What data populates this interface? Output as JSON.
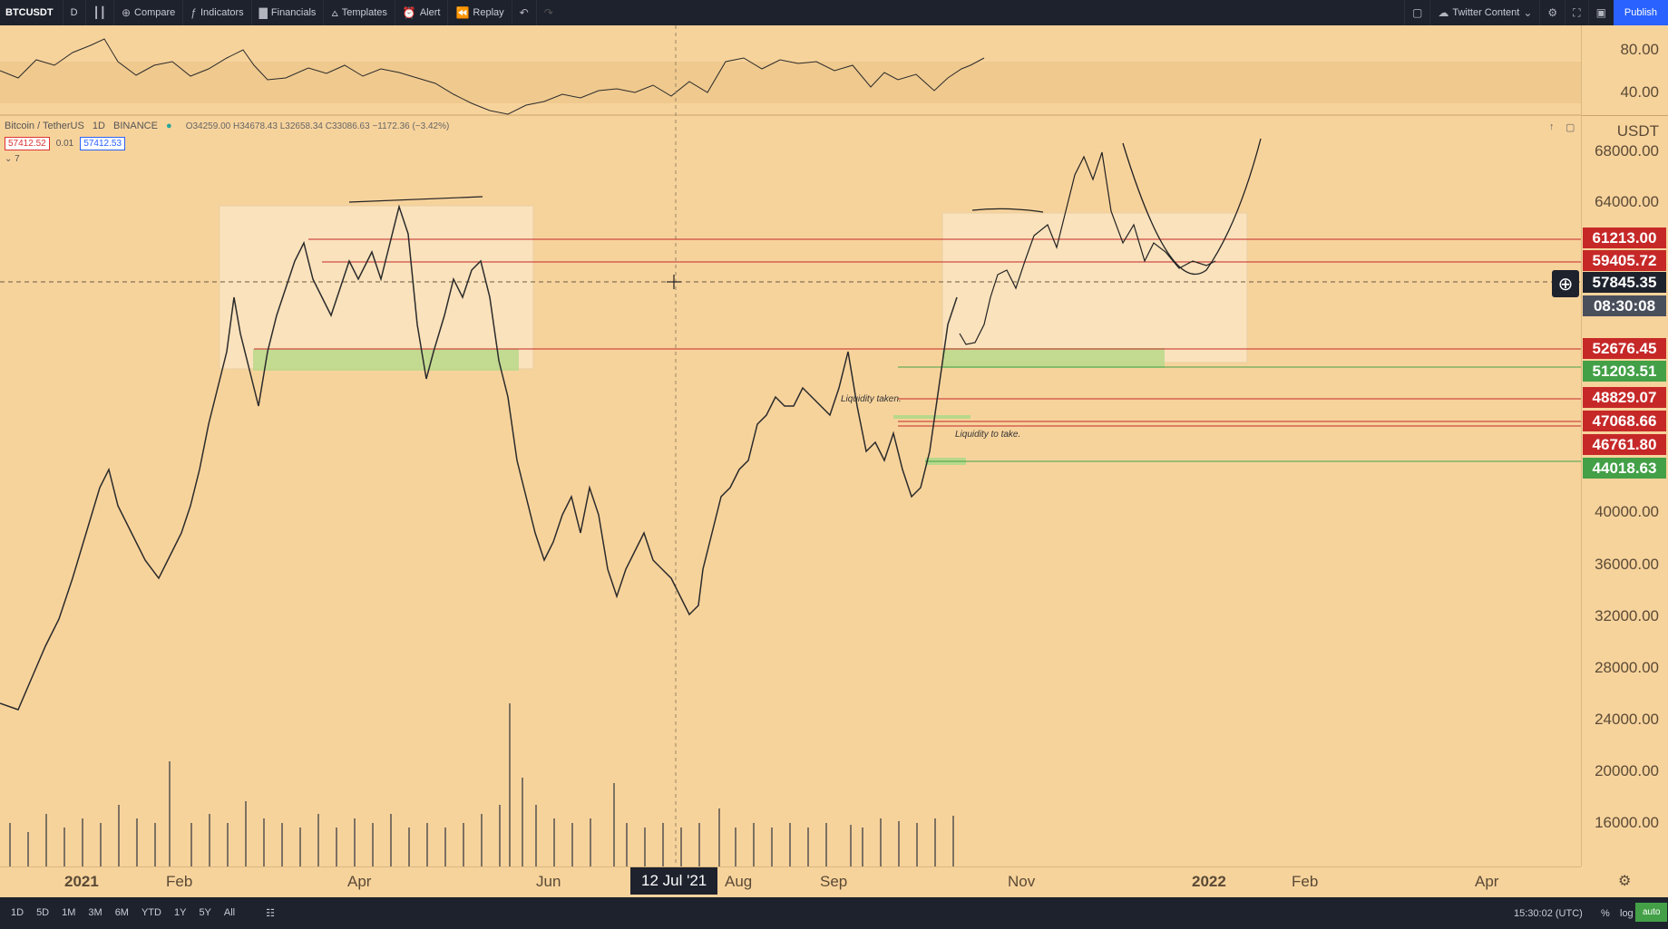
{
  "toolbar": {
    "symbol": "BTCUSDT",
    "interval": "D",
    "compare": "Compare",
    "indicators": "Indicators",
    "financials": "Financials",
    "templates": "Templates",
    "alert": "Alert",
    "replay": "Replay",
    "layout_name": "Twitter Content",
    "publish": "Publish"
  },
  "legend": {
    "title": "Bitcoin / TetherUS",
    "interval": "1D",
    "exchange": "BINANCE",
    "ohlc": "O34259.00 H34678.43 L32658.34 C33086.63 −1172.36 (−3.42%)",
    "bid": "57412.52",
    "spread": "0.01",
    "ask": "57412.53",
    "collapse": "7"
  },
  "rsi_axis": [
    "80.00",
    "40.00"
  ],
  "price_axis": {
    "currency": "USDT",
    "ticks": [
      "68000.00",
      "64000.00",
      "40000.00",
      "36000.00",
      "32000.00",
      "28000.00",
      "24000.00",
      "20000.00",
      "16000.00"
    ]
  },
  "price_tags": [
    {
      "value": "61213.00",
      "kind": "red"
    },
    {
      "value": "59405.72",
      "kind": "red"
    },
    {
      "value": "57845.35",
      "kind": "dark"
    },
    {
      "value": "08:30:08",
      "kind": "grey"
    },
    {
      "value": "52676.45",
      "kind": "red"
    },
    {
      "value": "51203.51",
      "kind": "green"
    },
    {
      "value": "48829.07",
      "kind": "red"
    },
    {
      "value": "47068.66",
      "kind": "red"
    },
    {
      "value": "46761.80",
      "kind": "red"
    },
    {
      "value": "44018.63",
      "kind": "green"
    }
  ],
  "time_axis": [
    "2021",
    "Feb",
    "Apr",
    "Jun",
    "Aug",
    "Sep",
    "Nov",
    "2022",
    "Feb",
    "Apr"
  ],
  "crosshair_date": "12 Jul '21",
  "annotations": {
    "liquidity_taken": "Liquidity taken.",
    "liquidity_to_take": "Liquidity to take."
  },
  "bottom": {
    "ranges": [
      "1D",
      "5D",
      "1M",
      "3M",
      "6M",
      "YTD",
      "1Y",
      "5Y",
      "All"
    ],
    "clock": "15:30:02 (UTC)",
    "percent": "%",
    "log": "log",
    "auto": "auto"
  },
  "colors": {
    "background": "#f7d39c",
    "red_level": "#c62828",
    "green_level": "#43a047",
    "toolbar": "#1e222d",
    "accent": "#2962ff"
  }
}
